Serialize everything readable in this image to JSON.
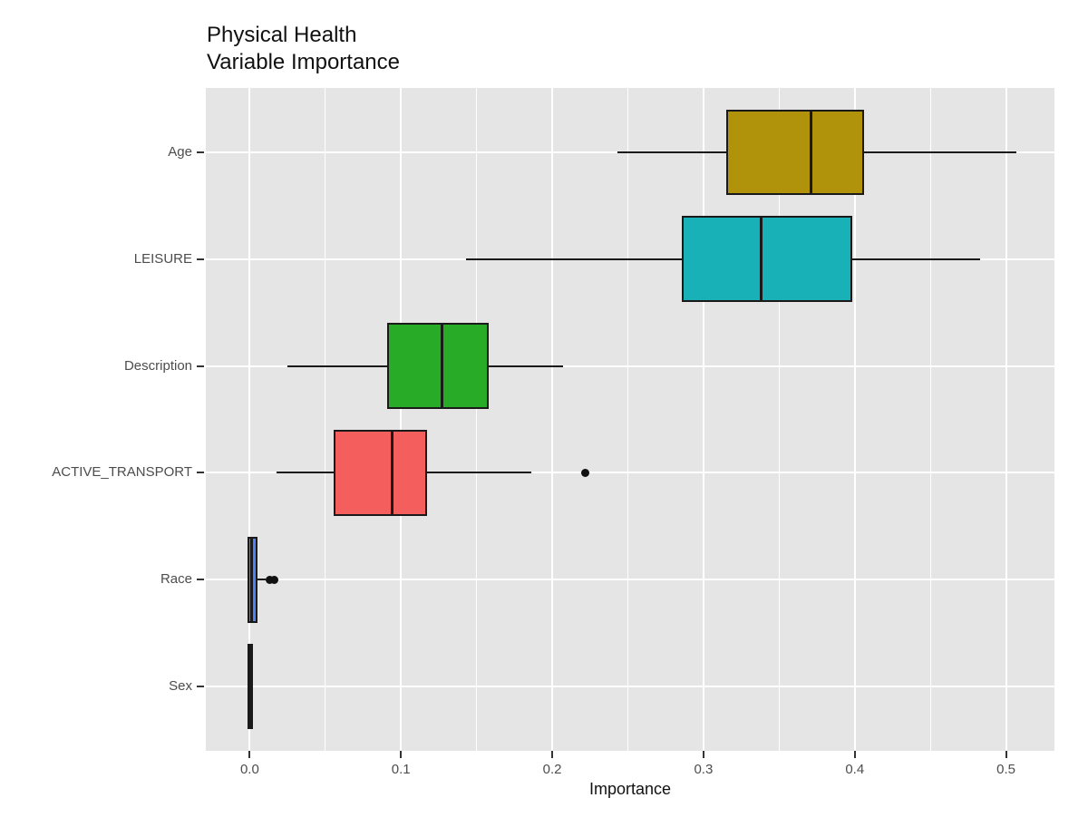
{
  "title": {
    "line1": "Physical Health",
    "line2": "Variable Importance"
  },
  "chart_data": {
    "type": "boxplot",
    "orientation": "horizontal",
    "title": "Physical Health\nVariable Importance",
    "xlabel": "Importance",
    "ylabel": "",
    "xlim": [
      -0.029,
      0.532
    ],
    "x_ticks": [
      0.0,
      0.1,
      0.2,
      0.3,
      0.4,
      0.5
    ],
    "x_minor_ticks": [
      0.05,
      0.15,
      0.25,
      0.35,
      0.45
    ],
    "grid": true,
    "legend": "none",
    "panel_bg": "#E5E5E5",
    "grid_color": "#FFFFFF",
    "axis_text_color": "#4D4D4D",
    "categories_top_to_bottom": [
      "Age",
      "LEISURE",
      "Description",
      "ACTIVE_TRANSPORT",
      "Race",
      "Sex"
    ],
    "series": [
      {
        "name": "Age",
        "color": "#B0920B",
        "min": 0.243,
        "q1": 0.316,
        "median": 0.371,
        "q3": 0.405,
        "max": 0.507,
        "outliers": []
      },
      {
        "name": "LEISURE",
        "color": "#18B1B7",
        "min": 0.143,
        "q1": 0.287,
        "median": 0.338,
        "q3": 0.397,
        "max": 0.483,
        "outliers": []
      },
      {
        "name": "Description",
        "color": "#28AC28",
        "min": 0.025,
        "q1": 0.092,
        "median": 0.127,
        "q3": 0.157,
        "max": 0.207,
        "outliers": []
      },
      {
        "name": "ACTIVE_TRANSPORT",
        "color": "#F45F5E",
        "min": 0.018,
        "q1": 0.057,
        "median": 0.094,
        "q3": 0.116,
        "max": 0.186,
        "outliers": [
          0.222
        ]
      },
      {
        "name": "Race",
        "color": "#4D81F4",
        "min": 0.0,
        "q1": 0.0,
        "median": 0.001,
        "q3": 0.004,
        "max": 0.0105,
        "outliers": [
          0.013,
          0.016
        ]
      },
      {
        "name": "Sex",
        "color": "#1A1A1A",
        "min": 0.0,
        "q1": 0.0,
        "median": 0.0005,
        "q3": 0.001,
        "max": 0.001,
        "outliers": []
      }
    ]
  }
}
